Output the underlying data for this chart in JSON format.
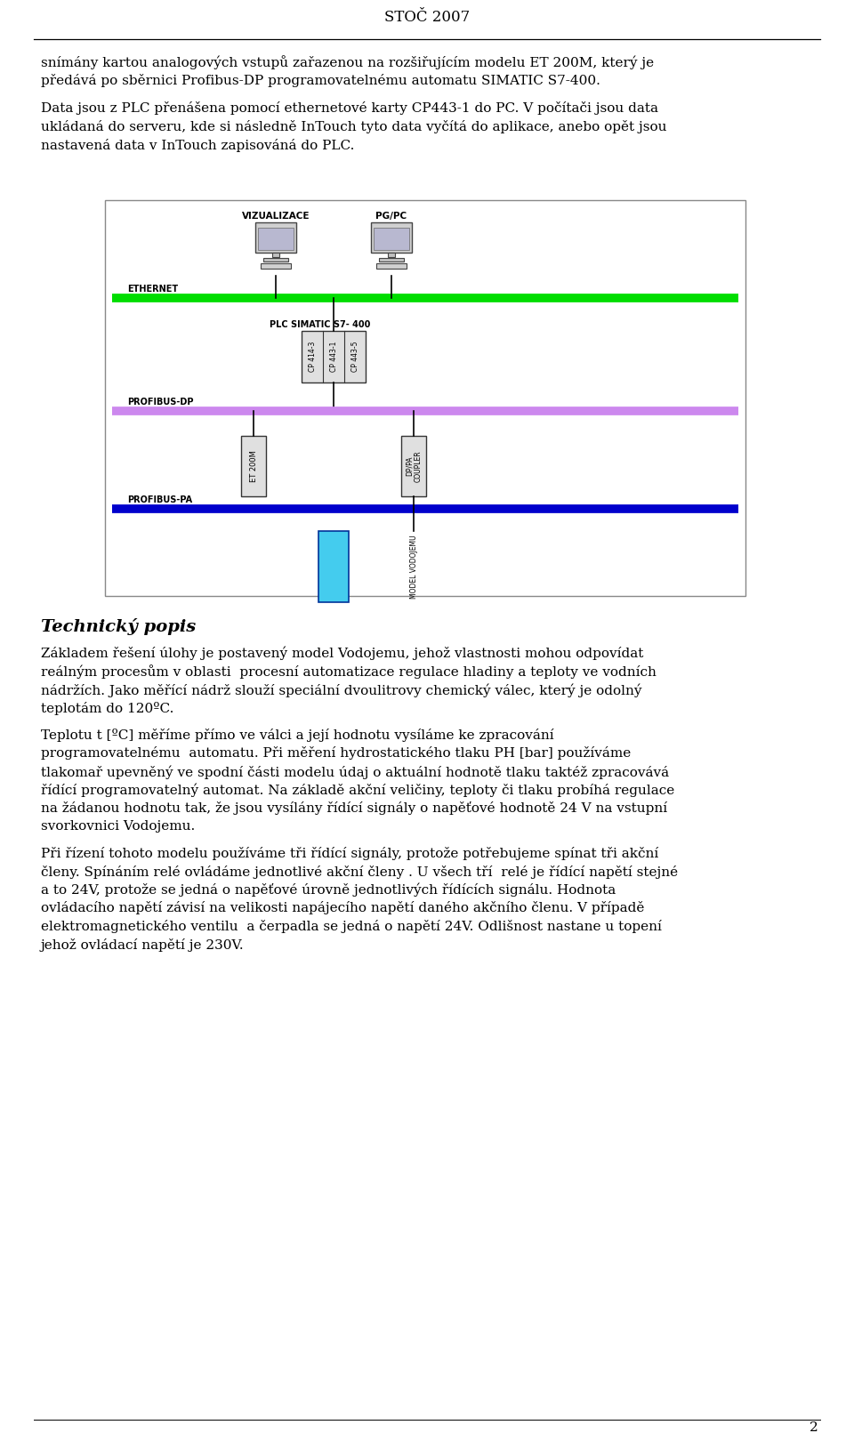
{
  "title": "STOČ 2007",
  "page_number": "2",
  "background_color": "#ffffff",
  "text_color": "#000000",
  "para1_lines": [
    "snímány kartou analogových vstupů zařazenou na rozšiřujícím modelu ET 200M, který je",
    "předává po sběrnici Profibus-DP programovatelnému automatu SIMATIC S7-400."
  ],
  "para2_lines": [
    "Data jsou z PLC přenášena pomocí ethernetové karty CP443-1 do PC. V počítači jsou data",
    "ukládaná do serveru, kde si následně InTouch tyto data vyčítá do aplikace, anebo opět jsou",
    "nastavená data v InTouch zapisováná do PLC."
  ],
  "section_title": "Technický popis",
  "sec_para1": [
    "Základem řešení úlohy je postavený model Vodojemu, jehož vlastnosti mohou odpovídat",
    "reálným procesům v oblasti  procesní automatizace regulace hladiny a teploty ve vodních",
    "nádržích. Jako měřící nádrž slouží speciální dvoulitrovy chemický válec, který je odolný",
    "teplotám do 120ºC."
  ],
  "sec_para2": [
    "Teplotu t [ºC] měříme přímo ve válci a její hodnotu vysíláme ke zpracování",
    "programovatelnému  automatu. Při měření hydrostatického tlaku PH [bar] používáme",
    "tlakomař upevněný ve spodní části modelu údaj o aktuální hodnotě tlaku taktéž zpracovává",
    "řídící programovatelný automat. Na základě akční veličiny, teploty či tlaku probíhá regulace",
    "na žádanou hodnotu tak, že jsou vysílány řídící signály o napěťové hodnotě 24 V na vstupní",
    "svorkovnici Vodojemu."
  ],
  "sec_para3": [
    "Při řízení tohoto modelu používáme tři řídící signály, protože potřebujeme spínat tři akční",
    "členy. Spínáním relé ovládáme jednotlivé akční členy . U všech tří  relé je řídící napětí stejné",
    "a to 24V, protože se jedná o napěťové úrovně jednotlivých řídících signálu. Hodnota",
    "ovládacího napětí závisí na velikosti napájecího napětí daného akčního členu. V případě",
    "elektromagnetického ventilu  a čerpadla se jedná o napětí 24V. Odlišnost nastane u topení",
    "jehož ovládací napětí je 230V."
  ],
  "diagram": {
    "ethernet_color": "#00dd00",
    "profibus_dp_color": "#cc88ee",
    "profibus_pa_color": "#0000cc",
    "line_color": "#000000",
    "box_fill": "#dddddd",
    "model_fill": "#44ccee"
  }
}
